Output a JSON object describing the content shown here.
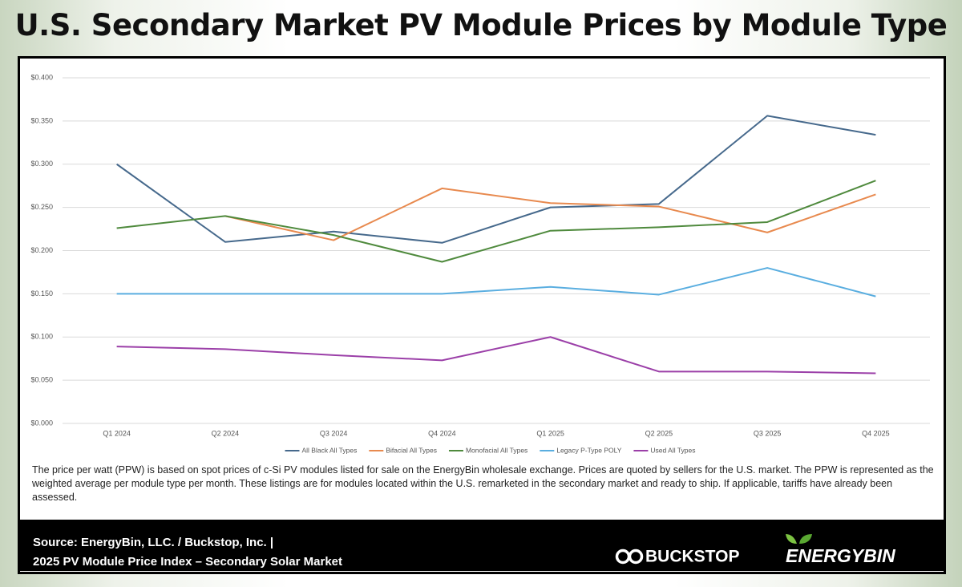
{
  "chart_data": {
    "type": "line",
    "title": "U.S. Secondary Market PV Module Prices by Module Type",
    "categories": [
      "Q1 2024",
      "Q2 2024",
      "Q3 2024",
      "Q4 2024",
      "Q1 2025",
      "Q2 2025",
      "Q3 2025",
      "Q4 2025"
    ],
    "series": [
      {
        "name": "All Black All Types",
        "color": "#46698c",
        "values": [
          0.3,
          0.21,
          0.222,
          0.209,
          0.25,
          0.254,
          0.356,
          0.334
        ]
      },
      {
        "name": "Bifacial All Types",
        "color": "#e88a4f",
        "values": [
          null,
          0.24,
          0.212,
          0.272,
          0.255,
          0.251,
          0.221,
          0.265
        ]
      },
      {
        "name": "Monofacial All Types",
        "color": "#4f8a3d",
        "values": [
          0.226,
          0.24,
          0.218,
          0.187,
          0.223,
          0.227,
          0.233,
          0.281
        ]
      },
      {
        "name": "Legacy P-Type POLY",
        "color": "#5aaee0",
        "values": [
          0.15,
          0.15,
          0.15,
          0.15,
          0.158,
          0.149,
          0.18,
          0.147
        ]
      },
      {
        "name": "Used All Types",
        "color": "#9b3fa8",
        "values": [
          0.089,
          0.086,
          0.079,
          0.073,
          0.1,
          0.06,
          0.06,
          0.058
        ]
      }
    ],
    "ylim": [
      0,
      0.4
    ],
    "yticks": [
      {
        "value": 0,
        "label": "$0.000"
      },
      {
        "value": 0.05,
        "label": "$0.050"
      },
      {
        "value": 0.1,
        "label": "$0.100"
      },
      {
        "value": 0.15,
        "label": "$0.150"
      },
      {
        "value": 0.2,
        "label": "$0.200"
      },
      {
        "value": 0.25,
        "label": "$0.250"
      },
      {
        "value": 0.3,
        "label": "$0.300"
      },
      {
        "value": 0.35,
        "label": "$0.350"
      },
      {
        "value": 0.4,
        "label": "$0.400"
      }
    ],
    "grid": true,
    "legend": "bottom"
  },
  "note": "The price per watt (PPW) is based on spot prices of c-Si PV modules listed for sale on the EnergyBin wholesale exchange.  Prices are quoted by sellers for the U.S. market.  The PPW is represented as the weighted average per module type per month.  These listings are for modules located within the U.S. remarketed in the secondary market and ready to ship.  If applicable, tariffs have already been assessed.",
  "footer": {
    "source": "Source: EnergyBin, LLC. / Buckstop, Inc. |",
    "index": "2025 PV Module Price Index – Secondary Solar Market",
    "logo1": "BUCKSTOP",
    "logo2": "ENERGYBIN"
  }
}
